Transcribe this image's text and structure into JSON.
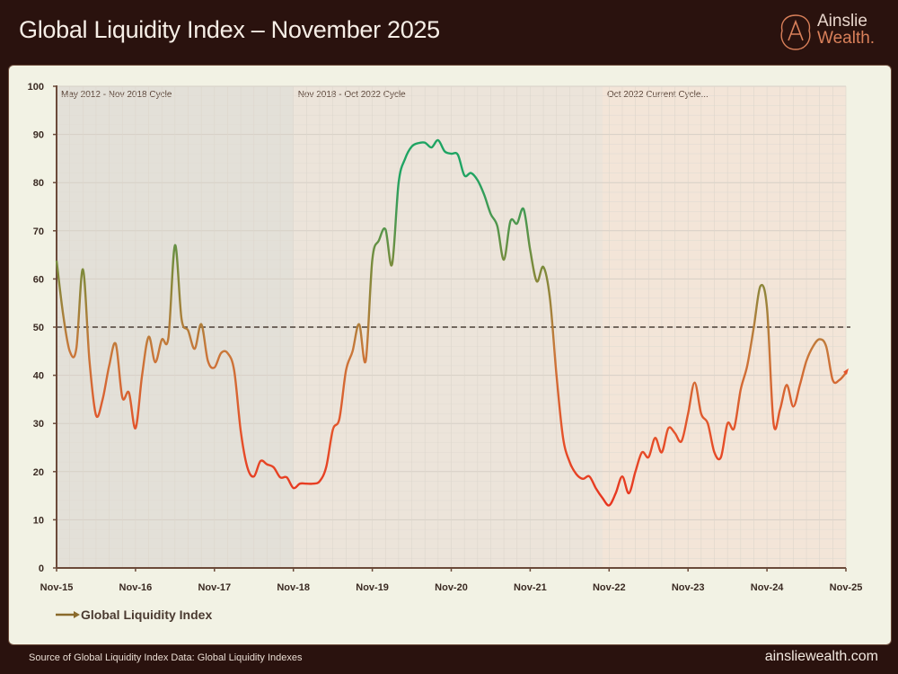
{
  "header": {
    "title": "Global Liquidity Index – November 2025"
  },
  "logo": {
    "line1": "Ainslie",
    "line2": "Wealth."
  },
  "footer": {
    "source": "Source of Global Liquidity Index Data: Global Liquidity Indexes",
    "website": "ainsliewealth.com"
  },
  "chart_data": {
    "type": "line",
    "title": "",
    "xlabel": "",
    "ylabel": "",
    "ylim": [
      0,
      100
    ],
    "yticks": [
      0,
      10,
      20,
      30,
      40,
      50,
      60,
      70,
      80,
      90,
      100
    ],
    "xticks": [
      "Nov-15",
      "Nov-16",
      "Nov-17",
      "Nov-18",
      "Nov-19",
      "Nov-20",
      "Nov-21",
      "Nov-22",
      "Nov-23",
      "Nov-24",
      "Nov-25"
    ],
    "xrange": [
      "2015-11",
      "2025-11"
    ],
    "grid": true,
    "reference_line": {
      "value": 50,
      "style": "dashed"
    },
    "regions": [
      {
        "label": "May 2012 - Nov 2018 Cycle",
        "from": "2015-11",
        "to": "2018-11",
        "color": "#e3e0d8"
      },
      {
        "label": "Nov 2018 - Oct 2022 Cycle",
        "from": "2018-11",
        "to": "2022-10",
        "color": "#ece4da"
      },
      {
        "label": "Oct 2022 Current Cycle...",
        "from": "2022-10",
        "to": "2025-11",
        "color": "#f3e5d8"
      }
    ],
    "legend": {
      "position": "bottom-left"
    },
    "colors": {
      "high": "#1fa463",
      "mid": "#7d8a3a",
      "neutral": "#c9783a",
      "low": "#e8321e"
    },
    "series": [
      {
        "name": "Global Liquidity Index",
        "start": "2015-11",
        "frequency": "monthly",
        "values": [
          63.8,
          52.6,
          45,
          45.5,
          62,
          43,
          31.7,
          35,
          42,
          46.5,
          35.4,
          36.4,
          29,
          40,
          48,
          42.7,
          47.4,
          47.8,
          67,
          51.7,
          49.3,
          45.5,
          50.6,
          43,
          41.6,
          44.6,
          44.6,
          41,
          28.4,
          20.9,
          19,
          22.2,
          21.5,
          20.9,
          18.8,
          18.8,
          16.6,
          17.5,
          17.5,
          17.5,
          18,
          21,
          28.7,
          31,
          41,
          45,
          50.6,
          43,
          64,
          68,
          70.3,
          63,
          80,
          85,
          87.5,
          88.2,
          88.3,
          87.3,
          88.8,
          86.5,
          86,
          85.8,
          81.5,
          82,
          80.5,
          77.5,
          73.5,
          71,
          64,
          72,
          71.5,
          74.5,
          66,
          59.5,
          62.5,
          56,
          40,
          27,
          22,
          19.5,
          18.5,
          19,
          16.5,
          14.5,
          13,
          15.5,
          19,
          15.5,
          20,
          24,
          23,
          27,
          24,
          29,
          28,
          26.3,
          32,
          38.5,
          32,
          30,
          24,
          23,
          30,
          29,
          37,
          42,
          50,
          58.5,
          54,
          30,
          33,
          38,
          33.5,
          38,
          43,
          46,
          47.5,
          46,
          39,
          39,
          40.5
        ]
      }
    ]
  }
}
